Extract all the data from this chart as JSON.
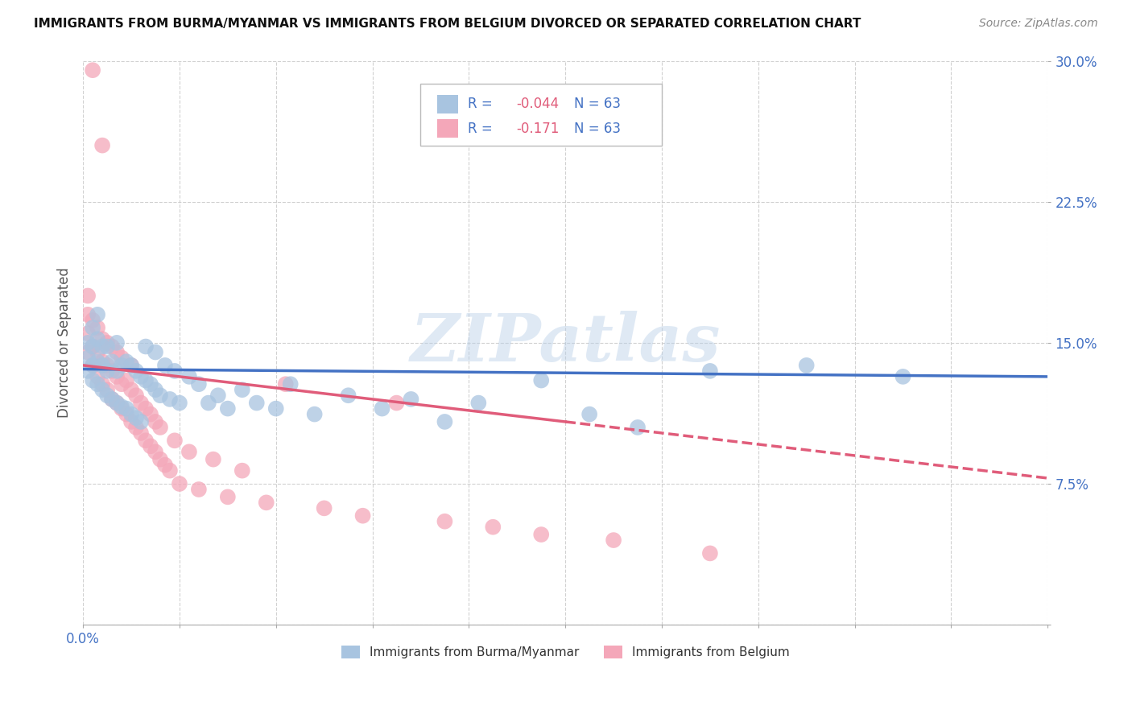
{
  "title": "IMMIGRANTS FROM BURMA/MYANMAR VS IMMIGRANTS FROM BELGIUM DIVORCED OR SEPARATED CORRELATION CHART",
  "source": "Source: ZipAtlas.com",
  "ylabel": "Divorced or Separated",
  "legend_label1": "Immigrants from Burma/Myanmar",
  "legend_label2": "Immigrants from Belgium",
  "R1": -0.044,
  "R2": -0.171,
  "N1": 63,
  "N2": 63,
  "xlim": [
    0.0,
    0.2
  ],
  "ylim": [
    0.0,
    0.3
  ],
  "xticks": [
    0.0,
    0.02,
    0.04,
    0.06,
    0.08,
    0.1,
    0.12,
    0.14,
    0.16,
    0.18,
    0.2
  ],
  "xticklabels_show": {
    "0.0": "0.0%"
  },
  "yticks": [
    0.0,
    0.075,
    0.15,
    0.225,
    0.3
  ],
  "yticklabels": [
    "",
    "7.5%",
    "15.0%",
    "22.5%",
    "30.0%"
  ],
  "color1": "#a8c4e0",
  "color2": "#f4a7b9",
  "line_color1": "#4472c4",
  "line_color2": "#e05c7a",
  "watermark": "ZIPatlas",
  "background_color": "#ffffff",
  "grid_color": "#cccccc",
  "scatter1_x": [
    0.001,
    0.001,
    0.001,
    0.002,
    0.002,
    0.002,
    0.002,
    0.003,
    0.003,
    0.003,
    0.003,
    0.004,
    0.004,
    0.004,
    0.005,
    0.005,
    0.005,
    0.006,
    0.006,
    0.007,
    0.007,
    0.007,
    0.008,
    0.008,
    0.009,
    0.009,
    0.01,
    0.01,
    0.011,
    0.011,
    0.012,
    0.012,
    0.013,
    0.013,
    0.014,
    0.015,
    0.015,
    0.016,
    0.017,
    0.018,
    0.019,
    0.02,
    0.022,
    0.024,
    0.026,
    0.028,
    0.03,
    0.033,
    0.036,
    0.04,
    0.043,
    0.048,
    0.055,
    0.062,
    0.068,
    0.075,
    0.082,
    0.095,
    0.105,
    0.115,
    0.13,
    0.15,
    0.17
  ],
  "scatter1_y": [
    0.135,
    0.142,
    0.15,
    0.13,
    0.138,
    0.148,
    0.158,
    0.128,
    0.14,
    0.152,
    0.165,
    0.125,
    0.138,
    0.148,
    0.122,
    0.135,
    0.148,
    0.12,
    0.14,
    0.118,
    0.135,
    0.15,
    0.116,
    0.138,
    0.115,
    0.14,
    0.112,
    0.138,
    0.11,
    0.135,
    0.108,
    0.132,
    0.13,
    0.148,
    0.128,
    0.125,
    0.145,
    0.122,
    0.138,
    0.12,
    0.135,
    0.118,
    0.132,
    0.128,
    0.118,
    0.122,
    0.115,
    0.125,
    0.118,
    0.115,
    0.128,
    0.112,
    0.122,
    0.115,
    0.12,
    0.108,
    0.118,
    0.13,
    0.112,
    0.105,
    0.135,
    0.138,
    0.132
  ],
  "scatter2_x": [
    0.001,
    0.001,
    0.001,
    0.001,
    0.002,
    0.002,
    0.002,
    0.002,
    0.003,
    0.003,
    0.003,
    0.004,
    0.004,
    0.004,
    0.004,
    0.005,
    0.005,
    0.005,
    0.006,
    0.006,
    0.006,
    0.007,
    0.007,
    0.007,
    0.008,
    0.008,
    0.008,
    0.009,
    0.009,
    0.01,
    0.01,
    0.01,
    0.011,
    0.011,
    0.012,
    0.012,
    0.013,
    0.013,
    0.014,
    0.014,
    0.015,
    0.015,
    0.016,
    0.016,
    0.017,
    0.018,
    0.019,
    0.02,
    0.022,
    0.024,
    0.027,
    0.03,
    0.033,
    0.038,
    0.042,
    0.05,
    0.058,
    0.065,
    0.075,
    0.085,
    0.095,
    0.11,
    0.13
  ],
  "scatter2_y": [
    0.145,
    0.155,
    0.165,
    0.175,
    0.138,
    0.148,
    0.162,
    0.295,
    0.132,
    0.145,
    0.158,
    0.128,
    0.14,
    0.152,
    0.255,
    0.125,
    0.138,
    0.15,
    0.12,
    0.135,
    0.148,
    0.118,
    0.132,
    0.145,
    0.115,
    0.128,
    0.142,
    0.112,
    0.13,
    0.108,
    0.125,
    0.138,
    0.105,
    0.122,
    0.102,
    0.118,
    0.098,
    0.115,
    0.095,
    0.112,
    0.092,
    0.108,
    0.088,
    0.105,
    0.085,
    0.082,
    0.098,
    0.075,
    0.092,
    0.072,
    0.088,
    0.068,
    0.082,
    0.065,
    0.128,
    0.062,
    0.058,
    0.118,
    0.055,
    0.052,
    0.048,
    0.045,
    0.038
  ],
  "trend_line1_start_y": 0.136,
  "trend_line1_end_y": 0.132,
  "trend_line2_start_y": 0.138,
  "trend_line2_end_y": 0.078,
  "trend_line2_solid_end_x": 0.1,
  "trend_line2_dashed_end_x": 0.2
}
